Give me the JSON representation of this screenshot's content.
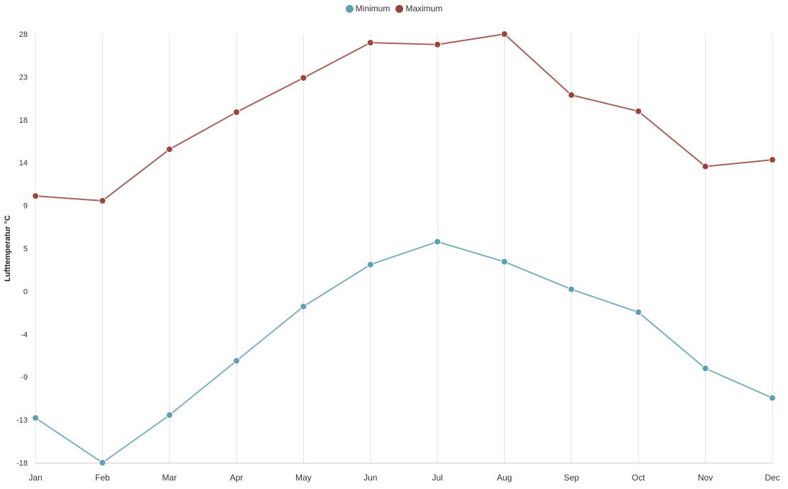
{
  "legend": {
    "items": [
      {
        "label": "Minimum",
        "color": "#5f9fb2"
      },
      {
        "label": "Maximum",
        "color": "#9a443b"
      }
    ]
  },
  "chart_data": {
    "type": "line",
    "categories": [
      "Jan",
      "Feb",
      "Mar",
      "Apr",
      "May",
      "Jun",
      "Jul",
      "Aug",
      "Sep",
      "Oct",
      "Nov",
      "Dec"
    ],
    "series": [
      {
        "name": "Minimum",
        "color": "#5f9fb2",
        "line_color": "#7ab0bf",
        "values": [
          -13.5,
          -18.2,
          -13.2,
          -7.5,
          -1.8,
          2.6,
          5.0,
          2.9,
          0.0,
          -2.4,
          -8.3,
          -11.4
        ]
      },
      {
        "name": "Maximum",
        "color": "#9a443b",
        "line_color": "#a6615a",
        "values": [
          9.8,
          9.3,
          14.7,
          18.6,
          22.2,
          25.9,
          25.7,
          26.8,
          20.4,
          18.7,
          12.9,
          13.6
        ]
      }
    ],
    "ylabel": "Lufttemperatur °C",
    "xlabel": "",
    "title": "",
    "yticks": [
      "28",
      "23",
      "18",
      "14",
      "9",
      "5",
      "0",
      "-4",
      "-9",
      "-13",
      "-18"
    ],
    "ylim": [
      -18.2,
      26.8
    ],
    "grid": "vertical",
    "legend_position": "top-center"
  }
}
